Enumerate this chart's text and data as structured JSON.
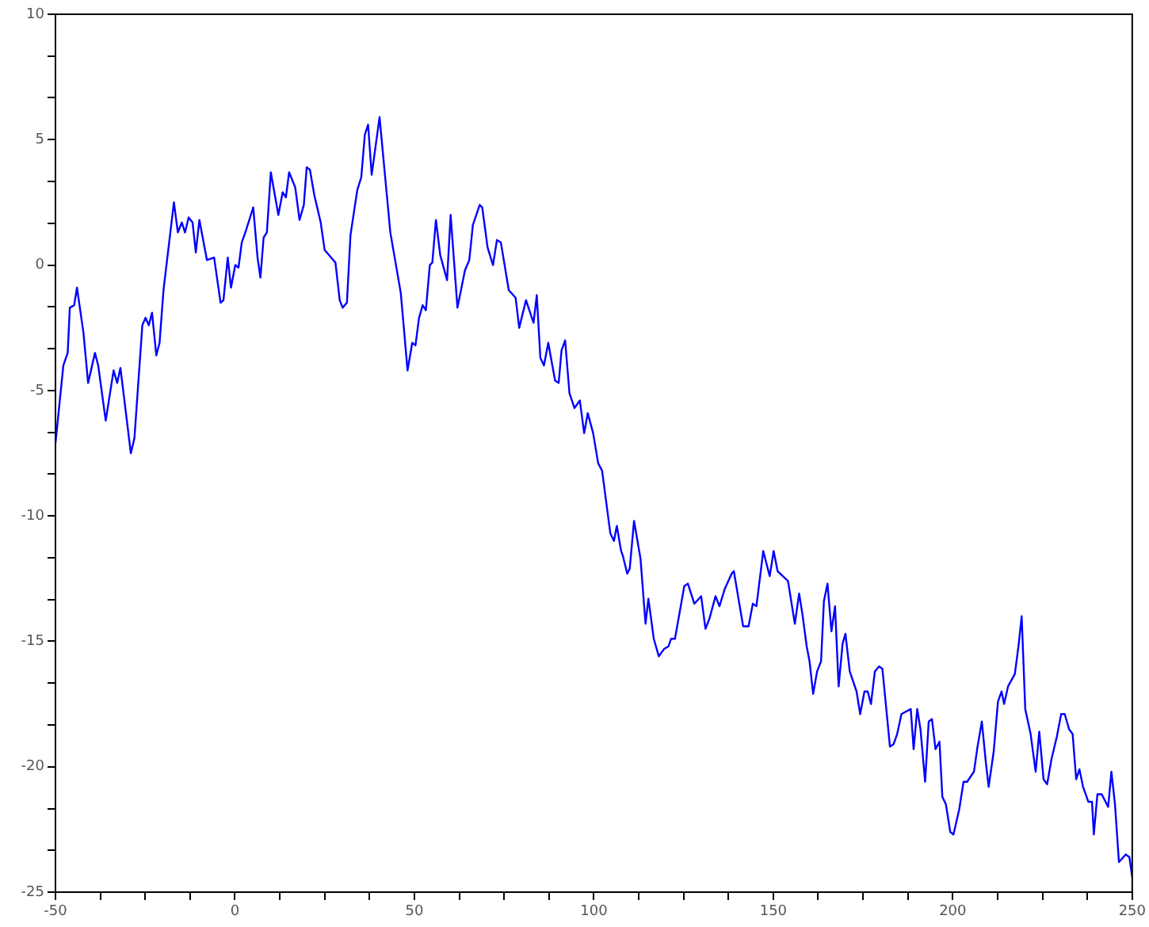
{
  "chart_data": {
    "type": "line",
    "color": "#0000ff",
    "marker": "none",
    "line_style": "solid",
    "grid": false,
    "legend": false,
    "x": [
      -50,
      -47.8,
      -46.6,
      -46,
      -44.8,
      -44,
      -42.2,
      -40.9,
      -39,
      -38.1,
      -36,
      -33.8,
      -32.8,
      -31.9,
      -29,
      -28,
      -25.8,
      -24.9,
      -24,
      -23.1,
      -21.9,
      -21,
      -19.9,
      -17,
      -15.9,
      -14.8,
      -13.9,
      -12.9,
      -11.8,
      -10.9,
      -9.9,
      -7.8,
      -5.8,
      -4,
      -3.2,
      -2,
      -1.1,
      0.1,
      1,
      1.9,
      2.9,
      5.1,
      6.3,
      7.1,
      8,
      8.9,
      10,
      12.1,
      13.3,
      14.2,
      15.1,
      16.8,
      18,
      19.2,
      20,
      20.9,
      22.1,
      23.9,
      25,
      27.4,
      28,
      29.2,
      30,
      31.2,
      32.2,
      34.1,
      35.2,
      36.2,
      37.1,
      38.1,
      40.3,
      43.3,
      46.2,
      48.1,
      49.4,
      50.3,
      51.3,
      52.3,
      53.2,
      54.3,
      55,
      56,
      57.2,
      59.1,
      60.1,
      62,
      64.1,
      65.3,
      66.3,
      68.2,
      68.9,
      70.4,
      71.9,
      73,
      74.1,
      76.3,
      78.2,
      79.2,
      81.1,
      83.2,
      84.1,
      85.1,
      86.1,
      87.3,
      89.2,
      90.2,
      91,
      92,
      93.2,
      94.6,
      96.1,
      97.3,
      98.3,
      99.8,
      101.2,
      102.3,
      104.6,
      105.6,
      106.4,
      107.6,
      108.1,
      109.3,
      110,
      111.2,
      113,
      114.4,
      115.2,
      116.7,
      118.1,
      119.6,
      120.8,
      121.5,
      122.6,
      125.2,
      126.2,
      128,
      129.9,
      131.1,
      132.2,
      133.9,
      135,
      136.5,
      138.4,
      139,
      141.6,
      143.1,
      144.3,
      145.3,
      147.2,
      149,
      150.1,
      151.2,
      154.1,
      156,
      157.2,
      158.1,
      159.3,
      160.1,
      161.1,
      162.2,
      163.3,
      164.1,
      165.1,
      166.2,
      167.2,
      168.2,
      169.3,
      170.1,
      171.3,
      173.2,
      174.2,
      175.4,
      176.3,
      177.2,
      178.3,
      179.5,
      180.4,
      182.5,
      183.5,
      184.5,
      185.7,
      188.3,
      189.1,
      190.1,
      191,
      192.3,
      193.3,
      194.2,
      195.2,
      196.3,
      197.1,
      198.1,
      199.3,
      200.2,
      201.8,
      203,
      204,
      205.9,
      206.9,
      208.1,
      209.2,
      210,
      211.4,
      212.6,
      213.6,
      214.3,
      215.4,
      217.3,
      218.3,
      219.2,
      220.2,
      221.7,
      223.1,
      224.1,
      225.3,
      226.3,
      227.5,
      229,
      230.2,
      231.2,
      232.4,
      233.4,
      234.4,
      235.3,
      236.3,
      237.8,
      238.8,
      239.3,
      240.3,
      241.5,
      243.3,
      244.2,
      245.2,
      246.3,
      248.2,
      249.2,
      250
    ],
    "values": [
      -7.1,
      -4,
      -3.5,
      -1.7,
      -1.6,
      -0.9,
      -2.7,
      -4.7,
      -3.5,
      -4,
      -6.2,
      -4.2,
      -4.7,
      -4.1,
      -7.5,
      -6.9,
      -2.4,
      -2.1,
      -2.4,
      -1.9,
      -3.6,
      -3.1,
      -1,
      2.5,
      1.3,
      1.7,
      1.3,
      1.9,
      1.7,
      0.5,
      1.8,
      0.2,
      0.3,
      -1.5,
      -1.4,
      0.3,
      -0.9,
      0,
      -0.1,
      0.9,
      1.3,
      2.3,
      0.3,
      -0.5,
      1.1,
      1.3,
      3.7,
      2,
      2.9,
      2.7,
      3.7,
      3.1,
      1.8,
      2.4,
      3.9,
      3.8,
      2.8,
      1.7,
      0.6,
      0.2,
      0.1,
      -1.4,
      -1.7,
      -1.5,
      1.2,
      3,
      3.5,
      5.2,
      5.6,
      3.6,
      5.9,
      1.3,
      -1.1,
      -4.2,
      -3.1,
      -3.2,
      -2.1,
      -1.6,
      -1.8,
      0,
      0.1,
      1.8,
      0.4,
      -0.6,
      2,
      -1.7,
      -0.2,
      0.2,
      1.6,
      2.4,
      2.3,
      0.7,
      0,
      1,
      0.9,
      -1,
      -1.3,
      -2.5,
      -1.4,
      -2.3,
      -1.2,
      -3.7,
      -4,
      -3.1,
      -4.6,
      -4.7,
      -3.4,
      -3,
      -5.1,
      -5.7,
      -5.4,
      -6.7,
      -5.9,
      -6.7,
      -7.9,
      -8.2,
      -10.7,
      -11,
      -10.4,
      -11.4,
      -11.6,
      -12.3,
      -12.1,
      -10.2,
      -11.7,
      -14.3,
      -13.3,
      -14.9,
      -15.6,
      -15.3,
      -15.2,
      -14.9,
      -14.9,
      -12.8,
      -12.7,
      -13.5,
      -13.2,
      -14.5,
      -14.1,
      -13.2,
      -13.6,
      -12.9,
      -12.3,
      -12.2,
      -14.4,
      -14.4,
      -13.5,
      -13.6,
      -11.4,
      -12.4,
      -11.4,
      -12.2,
      -12.6,
      -14.3,
      -13.1,
      -13.9,
      -15.2,
      -15.8,
      -17.1,
      -16.2,
      -15.8,
      -13.4,
      -12.7,
      -14.6,
      -13.6,
      -16.8,
      -15.1,
      -14.7,
      -16.2,
      -17,
      -17.9,
      -17,
      -17,
      -17.5,
      -16.2,
      -16,
      -16.1,
      -19.2,
      -19.1,
      -18.7,
      -17.9,
      -17.7,
      -19.3,
      -17.7,
      -18.5,
      -20.6,
      -18.2,
      -18.1,
      -19.3,
      -19,
      -21.2,
      -21.5,
      -22.6,
      -22.7,
      -21.7,
      -20.6,
      -20.6,
      -20.2,
      -19.2,
      -18.2,
      -19.8,
      -20.8,
      -19.4,
      -17.4,
      -17,
      -17.5,
      -16.8,
      -16.3,
      -15.2,
      -14,
      -17.7,
      -18.7,
      -20.2,
      -18.6,
      -20.5,
      -20.7,
      -19.7,
      -18.8,
      -17.9,
      -17.9,
      -18.5,
      -18.7,
      -20.5,
      -20.1,
      -20.8,
      -21.4,
      -21.4,
      -22.7,
      -21.1,
      -21.1,
      -21.6,
      -20.2,
      -21.5,
      -23.8,
      -23.5,
      -23.6,
      -24.4
    ],
    "xlim": [
      -50,
      250
    ],
    "xticks": [
      -50,
      {
        "value": -37.5,
        "label": null
      },
      {
        "value": -25,
        "label": null
      },
      {
        "value": -12.5,
        "label": null
      },
      0,
      {
        "value": 12.5,
        "label": null
      },
      {
        "value": 25,
        "label": null
      },
      {
        "value": 37.5,
        "label": null
      },
      50,
      {
        "value": 62.5,
        "label": null
      },
      {
        "value": 75,
        "label": null
      },
      {
        "value": 87.5,
        "label": null
      },
      100,
      {
        "value": 112.5,
        "label": null
      },
      {
        "value": 125,
        "label": null
      },
      {
        "value": 137.5,
        "label": null
      },
      150,
      {
        "value": 162.5,
        "label": null
      },
      {
        "value": 175,
        "label": null
      },
      {
        "value": 187.5,
        "label": null
      },
      200,
      {
        "value": 212.5,
        "label": null
      },
      {
        "value": 225,
        "label": null
      },
      {
        "value": 237.5,
        "label": null
      },
      250
    ],
    "ylim": [
      -25,
      10
    ],
    "yticks": [
      -25,
      {
        "value": -23.33,
        "label": null
      },
      {
        "value": -21.67,
        "label": null
      },
      -20,
      {
        "value": -18.33,
        "label": null
      },
      {
        "value": -16.67,
        "label": null
      },
      -15,
      {
        "value": -13.33,
        "label": null
      },
      {
        "value": -11.67,
        "label": null
      },
      -10,
      {
        "value": -8.33,
        "label": null
      },
      {
        "value": -6.67,
        "label": null
      },
      -5,
      {
        "value": -3.33,
        "label": null
      },
      {
        "value": -1.67,
        "label": null
      },
      0,
      {
        "value": 1.67,
        "label": null
      },
      {
        "value": 3.33,
        "label": null
      },
      5,
      {
        "value": 6.67,
        "label": null
      },
      {
        "value": 8.33,
        "label": null
      },
      10
    ]
  }
}
